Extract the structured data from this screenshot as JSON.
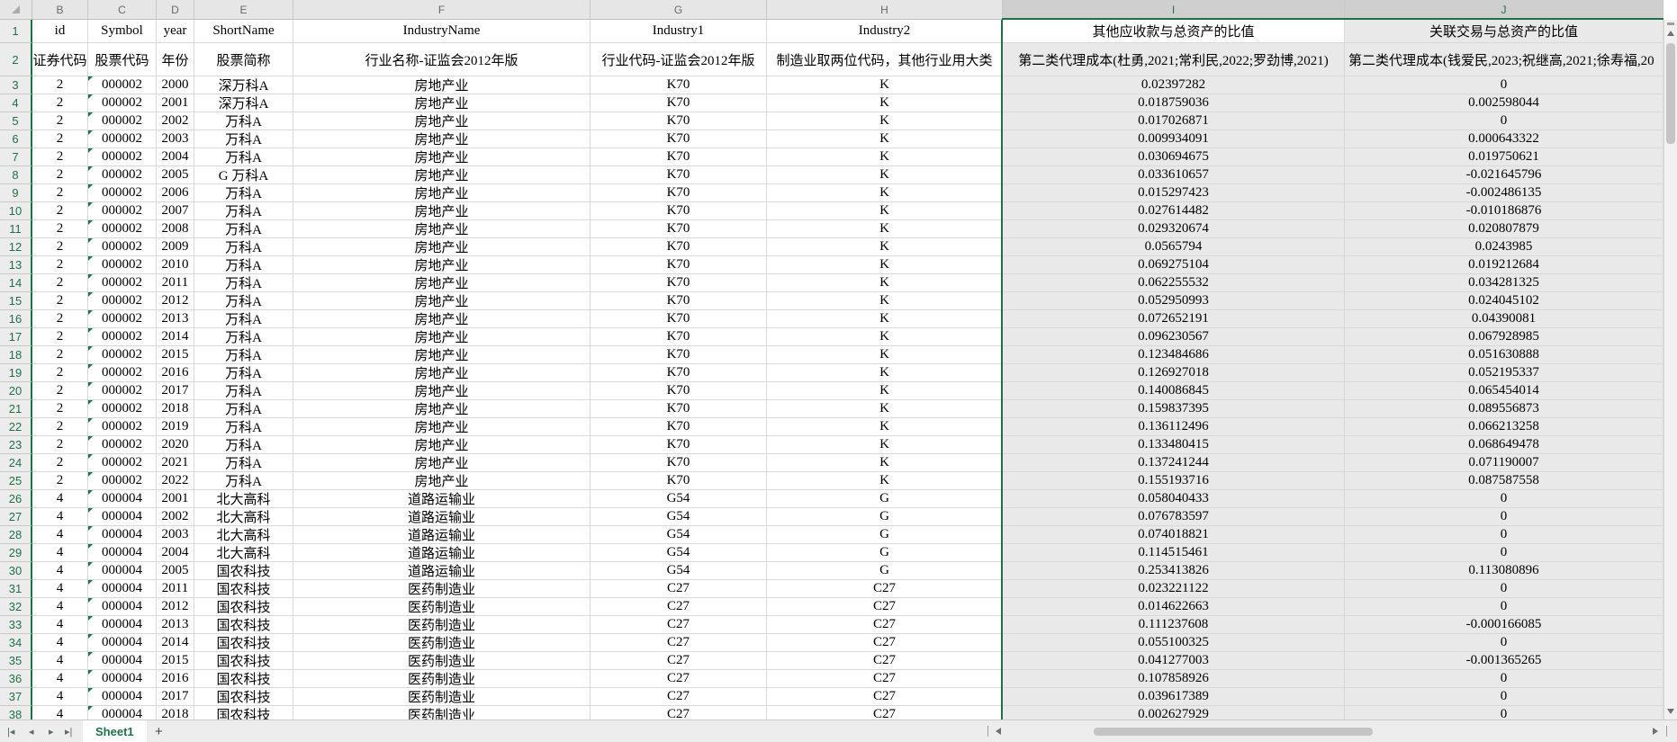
{
  "colors": {
    "accent_green": "#1f7145",
    "grid_line": "#d8d8d8",
    "selection_fill": "#e9e9e9",
    "header_bg": "#e6e6e6",
    "selected_header_bg": "#cfcfcf"
  },
  "sheet": {
    "column_letters": [
      "B",
      "C",
      "D",
      "E",
      "F",
      "G",
      "H",
      "I",
      "J"
    ],
    "selected_columns": [
      "I",
      "J"
    ],
    "header_row1": [
      "id",
      "Symbol",
      "year",
      "ShortName",
      "IndustryName",
      "Industry1",
      "Industry2",
      "其他应收款与总资产的比值",
      "关联交易与总资产的比值"
    ],
    "header_row2": [
      "证券代码",
      "股票代码",
      "年份",
      "股票简称",
      "行业名称-证监会2012年版",
      "行业代码-证监会2012年版",
      "制造业取两位代码，其他行业用大类",
      "第二类代理成本(杜勇,2021;常利民,2022;罗劲博,2021)",
      "第二类代理成本(钱爱民,2023;祝继高,2021;徐寿福,20"
    ],
    "rows": [
      [
        "2",
        "000002",
        "2000",
        "深万科A",
        "房地产业",
        "K70",
        "K",
        "0.02397282",
        "0"
      ],
      [
        "2",
        "000002",
        "2001",
        "深万科A",
        "房地产业",
        "K70",
        "K",
        "0.018759036",
        "0.002598044"
      ],
      [
        "2",
        "000002",
        "2002",
        "万科A",
        "房地产业",
        "K70",
        "K",
        "0.017026871",
        "0"
      ],
      [
        "2",
        "000002",
        "2003",
        "万科A",
        "房地产业",
        "K70",
        "K",
        "0.009934091",
        "0.000643322"
      ],
      [
        "2",
        "000002",
        "2004",
        "万科A",
        "房地产业",
        "K70",
        "K",
        "0.030694675",
        "0.019750621"
      ],
      [
        "2",
        "000002",
        "2005",
        "G 万科A",
        "房地产业",
        "K70",
        "K",
        "0.033610657",
        "-0.021645796"
      ],
      [
        "2",
        "000002",
        "2006",
        "万科A",
        "房地产业",
        "K70",
        "K",
        "0.015297423",
        "-0.002486135"
      ],
      [
        "2",
        "000002",
        "2007",
        "万科A",
        "房地产业",
        "K70",
        "K",
        "0.027614482",
        "-0.010186876"
      ],
      [
        "2",
        "000002",
        "2008",
        "万科A",
        "房地产业",
        "K70",
        "K",
        "0.029320674",
        "0.020807879"
      ],
      [
        "2",
        "000002",
        "2009",
        "万科A",
        "房地产业",
        "K70",
        "K",
        "0.0565794",
        "0.0243985"
      ],
      [
        "2",
        "000002",
        "2010",
        "万科A",
        "房地产业",
        "K70",
        "K",
        "0.069275104",
        "0.019212684"
      ],
      [
        "2",
        "000002",
        "2011",
        "万科A",
        "房地产业",
        "K70",
        "K",
        "0.062255532",
        "0.034281325"
      ],
      [
        "2",
        "000002",
        "2012",
        "万科A",
        "房地产业",
        "K70",
        "K",
        "0.052950993",
        "0.024045102"
      ],
      [
        "2",
        "000002",
        "2013",
        "万科A",
        "房地产业",
        "K70",
        "K",
        "0.072652191",
        "0.04390081"
      ],
      [
        "2",
        "000002",
        "2014",
        "万科A",
        "房地产业",
        "K70",
        "K",
        "0.096230567",
        "0.067928985"
      ],
      [
        "2",
        "000002",
        "2015",
        "万科A",
        "房地产业",
        "K70",
        "K",
        "0.123484686",
        "0.051630888"
      ],
      [
        "2",
        "000002",
        "2016",
        "万科A",
        "房地产业",
        "K70",
        "K",
        "0.126927018",
        "0.052195337"
      ],
      [
        "2",
        "000002",
        "2017",
        "万科A",
        "房地产业",
        "K70",
        "K",
        "0.140086845",
        "0.065454014"
      ],
      [
        "2",
        "000002",
        "2018",
        "万科A",
        "房地产业",
        "K70",
        "K",
        "0.159837395",
        "0.089556873"
      ],
      [
        "2",
        "000002",
        "2019",
        "万科A",
        "房地产业",
        "K70",
        "K",
        "0.136112496",
        "0.066213258"
      ],
      [
        "2",
        "000002",
        "2020",
        "万科A",
        "房地产业",
        "K70",
        "K",
        "0.133480415",
        "0.068649478"
      ],
      [
        "2",
        "000002",
        "2021",
        "万科A",
        "房地产业",
        "K70",
        "K",
        "0.137241244",
        "0.071190007"
      ],
      [
        "2",
        "000002",
        "2022",
        "万科A",
        "房地产业",
        "K70",
        "K",
        "0.155193716",
        "0.087587558"
      ],
      [
        "4",
        "000004",
        "2001",
        "北大高科",
        "道路运输业",
        "G54",
        "G",
        "0.058040433",
        "0"
      ],
      [
        "4",
        "000004",
        "2002",
        "北大高科",
        "道路运输业",
        "G54",
        "G",
        "0.076783597",
        "0"
      ],
      [
        "4",
        "000004",
        "2003",
        "北大高科",
        "道路运输业",
        "G54",
        "G",
        "0.074018821",
        "0"
      ],
      [
        "4",
        "000004",
        "2004",
        "北大高科",
        "道路运输业",
        "G54",
        "G",
        "0.114515461",
        "0"
      ],
      [
        "4",
        "000004",
        "2005",
        "国农科技",
        "道路运输业",
        "G54",
        "G",
        "0.253413826",
        "0.113080896"
      ],
      [
        "4",
        "000004",
        "2011",
        "国农科技",
        "医药制造业",
        "C27",
        "C27",
        "0.023221122",
        "0"
      ],
      [
        "4",
        "000004",
        "2012",
        "国农科技",
        "医药制造业",
        "C27",
        "C27",
        "0.014622663",
        "0"
      ],
      [
        "4",
        "000004",
        "2013",
        "国农科技",
        "医药制造业",
        "C27",
        "C27",
        "0.111237608",
        "-0.000166085"
      ],
      [
        "4",
        "000004",
        "2014",
        "国农科技",
        "医药制造业",
        "C27",
        "C27",
        "0.055100325",
        "0"
      ],
      [
        "4",
        "000004",
        "2015",
        "国农科技",
        "医药制造业",
        "C27",
        "C27",
        "0.041277003",
        "-0.001365265"
      ],
      [
        "4",
        "000004",
        "2016",
        "国农科技",
        "医药制造业",
        "C27",
        "C27",
        "0.107858926",
        "0"
      ],
      [
        "4",
        "000004",
        "2017",
        "国农科技",
        "医药制造业",
        "C27",
        "C27",
        "0.039617389",
        "0"
      ],
      [
        "4",
        "000004",
        "2018",
        "国农科技",
        "医药制造业",
        "C27",
        "C27",
        "0.002627929",
        "0"
      ]
    ]
  },
  "bottom_bar": {
    "nav_first": "|◂",
    "nav_prev": "◂",
    "nav_next": "▸",
    "nav_last": "▸|",
    "sheet_tab": "Sheet1",
    "add_sheet": "+"
  }
}
